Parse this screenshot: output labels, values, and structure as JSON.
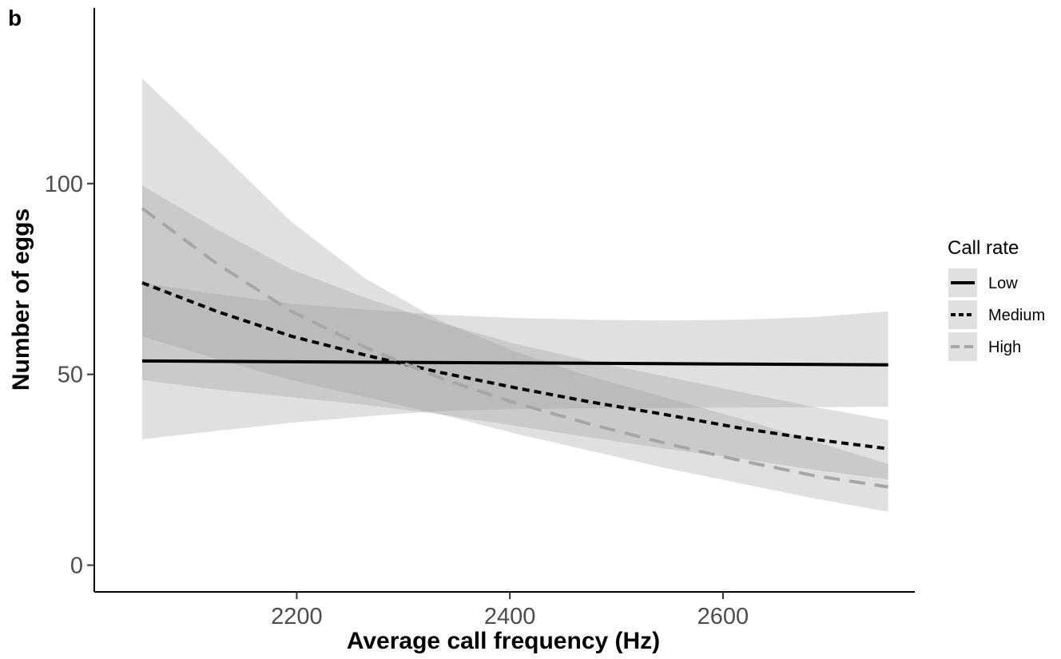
{
  "panel_label": "b",
  "chart_data": {
    "type": "line",
    "xlabel": "Average call frequency (Hz)",
    "ylabel": "Number of eggs",
    "xlim": [
      2010,
      2780
    ],
    "ylim": [
      -7,
      146
    ],
    "x_ticks": [
      2200,
      2400,
      2600
    ],
    "y_ticks": [
      0,
      50,
      100
    ],
    "x_tick_labels": [
      "2200",
      "2400",
      "2600"
    ],
    "y_tick_labels": [
      "0",
      "50",
      "100"
    ],
    "grid": false,
    "legend": {
      "title": "Call rate",
      "position": "right"
    },
    "x": [
      2055,
      2125,
      2195,
      2265,
      2335,
      2405,
      2475,
      2545,
      2615,
      2685,
      2755
    ],
    "series": [
      {
        "name": "Low",
        "color": "#000000",
        "line_style": "solid",
        "values": [
          53.5,
          53.4,
          53.3,
          53.2,
          53.1,
          53.0,
          52.9,
          52.8,
          52.7,
          52.6,
          52.5
        ],
        "ci_lower": [
          33,
          35.2,
          37.3,
          39.0,
          40.4,
          40.9,
          41.1,
          41.2,
          41.3,
          41.4,
          41.5
        ],
        "ci_upper": [
          74,
          71,
          68.5,
          67,
          65.6,
          64.8,
          64.3,
          64.1,
          64.3,
          65,
          66.5
        ]
      },
      {
        "name": "Medium",
        "color": "#000000",
        "line_style": "dotted",
        "values": [
          74,
          66.5,
          60,
          55,
          50.5,
          46.5,
          42.8,
          39.5,
          36,
          33,
          30.5
        ],
        "ci_lower": [
          48.5,
          46,
          44,
          42,
          39.5,
          36.5,
          33.5,
          30.5,
          28,
          25,
          22.5
        ],
        "ci_upper": [
          99.5,
          88,
          77.5,
          70,
          63.5,
          58,
          53.5,
          49.5,
          45.5,
          41.5,
          38
        ]
      },
      {
        "name": "High",
        "color": "#a6a6a6",
        "line_style": "dashed",
        "values": [
          93.5,
          79,
          66.5,
          57,
          49,
          42.5,
          37,
          32,
          27.5,
          23.5,
          20.5
        ],
        "ci_lower": [
          60,
          54,
          48.5,
          44,
          39.5,
          34.5,
          30,
          25.5,
          21.5,
          17.5,
          14
        ],
        "ci_upper": [
          127.5,
          109,
          90,
          75,
          64,
          56,
          49.5,
          44,
          38.5,
          32.5,
          26.5
        ]
      }
    ]
  },
  "colors": {
    "ribbon_fill": "#999999",
    "ribbon_opacity": 0.3,
    "legend_key_background": "#e0e0e0",
    "axis_line": "#000000",
    "tick_text": "#4d4d4d"
  }
}
